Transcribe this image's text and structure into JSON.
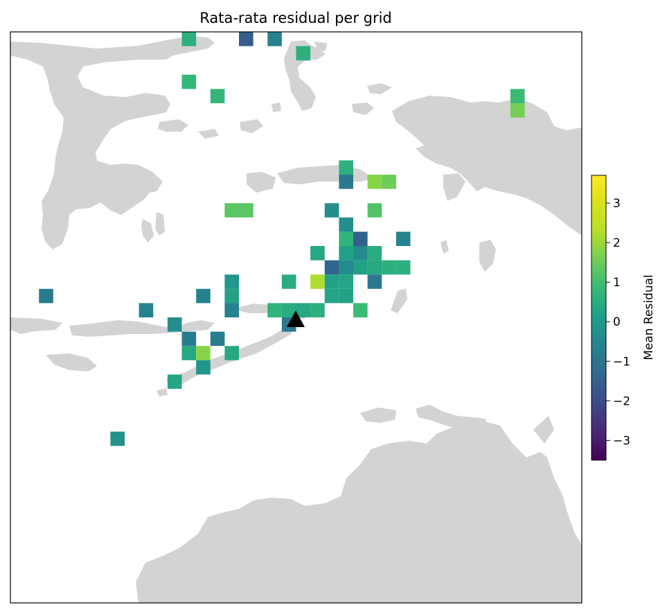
{
  "title": "Rata-rata residual per grid",
  "chart_data": {
    "type": "heatmap",
    "colormap": "viridis",
    "grid_rows": 40,
    "grid_cols": 40,
    "cells": [
      {
        "row": 0,
        "col": 12,
        "value": 0.6
      },
      {
        "row": 0,
        "col": 16,
        "value": -1.6
      },
      {
        "row": 0,
        "col": 18,
        "value": -0.6
      },
      {
        "row": 1,
        "col": 20,
        "value": 0.6
      },
      {
        "row": 3,
        "col": 12,
        "value": 0.8
      },
      {
        "row": 4,
        "col": 14,
        "value": 0.8
      },
      {
        "row": 4,
        "col": 35,
        "value": 0.9
      },
      {
        "row": 5,
        "col": 35,
        "value": 1.6
      },
      {
        "row": 9,
        "col": 23,
        "value": 0.6
      },
      {
        "row": 10,
        "col": 23,
        "value": -0.9
      },
      {
        "row": 10,
        "col": 25,
        "value": 1.8
      },
      {
        "row": 10,
        "col": 26,
        "value": 1.5
      },
      {
        "row": 12,
        "col": 15,
        "value": 1.3
      },
      {
        "row": 12,
        "col": 16,
        "value": 1.3
      },
      {
        "row": 12,
        "col": 22,
        "value": -0.3
      },
      {
        "row": 12,
        "col": 25,
        "value": 1.2
      },
      {
        "row": 13,
        "col": 23,
        "value": -0.3
      },
      {
        "row": 14,
        "col": 23,
        "value": 0.7
      },
      {
        "row": 14,
        "col": 24,
        "value": -1.5
      },
      {
        "row": 14,
        "col": 27,
        "value": -0.6
      },
      {
        "row": 15,
        "col": 21,
        "value": 0.4
      },
      {
        "row": 15,
        "col": 23,
        "value": 0.2
      },
      {
        "row": 15,
        "col": 24,
        "value": -0.4
      },
      {
        "row": 15,
        "col": 25,
        "value": 0.5
      },
      {
        "row": 16,
        "col": 22,
        "value": -1.4
      },
      {
        "row": 16,
        "col": 23,
        "value": -0.4
      },
      {
        "row": 16,
        "col": 24,
        "value": 0.2
      },
      {
        "row": 16,
        "col": 25,
        "value": 0.4
      },
      {
        "row": 16,
        "col": 26,
        "value": 0.6
      },
      {
        "row": 16,
        "col": 27,
        "value": 0.6
      },
      {
        "row": 17,
        "col": 15,
        "value": -0.1
      },
      {
        "row": 17,
        "col": 19,
        "value": 0.5
      },
      {
        "row": 17,
        "col": 21,
        "value": 2.2
      },
      {
        "row": 17,
        "col": 22,
        "value": 0.2
      },
      {
        "row": 17,
        "col": 23,
        "value": 0.3
      },
      {
        "row": 17,
        "col": 25,
        "value": -0.9
      },
      {
        "row": 18,
        "col": 2,
        "value": -0.8
      },
      {
        "row": 18,
        "col": 13,
        "value": -0.6
      },
      {
        "row": 18,
        "col": 15,
        "value": 0.2
      },
      {
        "row": 18,
        "col": 22,
        "value": 0.3
      },
      {
        "row": 18,
        "col": 23,
        "value": 0.2
      },
      {
        "row": 19,
        "col": 9,
        "value": -0.6
      },
      {
        "row": 19,
        "col": 15,
        "value": -0.6
      },
      {
        "row": 19,
        "col": 18,
        "value": 0.7
      },
      {
        "row": 19,
        "col": 19,
        "value": 0.5
      },
      {
        "row": 19,
        "col": 20,
        "value": 0.4
      },
      {
        "row": 19,
        "col": 21,
        "value": 0.6
      },
      {
        "row": 19,
        "col": 24,
        "value": 0.9
      },
      {
        "row": 20,
        "col": 11,
        "value": -0.3
      },
      {
        "row": 20,
        "col": 19,
        "value": -0.9
      },
      {
        "row": 21,
        "col": 12,
        "value": -0.8
      },
      {
        "row": 21,
        "col": 14,
        "value": -0.8
      },
      {
        "row": 22,
        "col": 12,
        "value": 0.4
      },
      {
        "row": 22,
        "col": 13,
        "value": 1.8
      },
      {
        "row": 22,
        "col": 15,
        "value": 0.4
      },
      {
        "row": 23,
        "col": 13,
        "value": -0.1
      },
      {
        "row": 24,
        "col": 11,
        "value": 0.3
      },
      {
        "row": 28,
        "col": 7,
        "value": -0.2
      }
    ],
    "colorbar": {
      "label": "Mean Residual",
      "vmin": -3.5,
      "vmax": 3.7,
      "ticks": [
        -3,
        -2,
        -1,
        0,
        1,
        2,
        3
      ],
      "tick_labels": [
        "−3",
        "−2",
        "−1",
        "0",
        "1",
        "2",
        "3"
      ]
    },
    "marker": {
      "shape": "triangle",
      "color": "#000000",
      "row": 20,
      "col": 19.5
    },
    "colors": {
      "land": "#d3d3d3",
      "ocean": "#ffffff"
    }
  }
}
